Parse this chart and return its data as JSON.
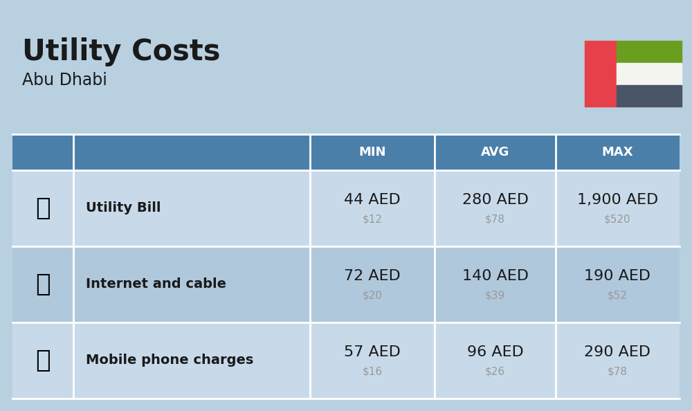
{
  "title": "Utility Costs",
  "subtitle": "Abu Dhabi",
  "background_color": "#b8d0e0",
  "table_header_color": "#4a7faa",
  "table_header_text_color": "#ffffff",
  "table_row1_color": "#c8daea",
  "table_row2_color": "#b0c8dc",
  "table_row3_color": "#c8daea",
  "rows": [
    {
      "label": "Utility Bill",
      "min_aed": "44 AED",
      "min_usd": "$12",
      "avg_aed": "280 AED",
      "avg_usd": "$78",
      "max_aed": "1,900 AED",
      "max_usd": "$520"
    },
    {
      "label": "Internet and cable",
      "min_aed": "72 AED",
      "min_usd": "$20",
      "avg_aed": "140 AED",
      "avg_usd": "$39",
      "max_aed": "190 AED",
      "max_usd": "$52"
    },
    {
      "label": "Mobile phone charges",
      "min_aed": "57 AED",
      "min_usd": "$16",
      "avg_aed": "96 AED",
      "avg_usd": "$26",
      "max_aed": "290 AED",
      "max_usd": "$78"
    }
  ],
  "title_fontsize": 30,
  "subtitle_fontsize": 17,
  "header_fontsize": 13,
  "label_fontsize": 14,
  "value_aed_fontsize": 16,
  "value_usd_fontsize": 11,
  "flag_red": "#e8404a",
  "flag_green": "#6a9e1f",
  "flag_white": "#f5f5f0",
  "flag_darkgray": "#4a5568",
  "title_color": "#1a1a1a",
  "subtitle_color": "#1a1a1a",
  "label_color": "#1a1a1a",
  "usd_color": "#999999",
  "divider_color": "#ffffff"
}
